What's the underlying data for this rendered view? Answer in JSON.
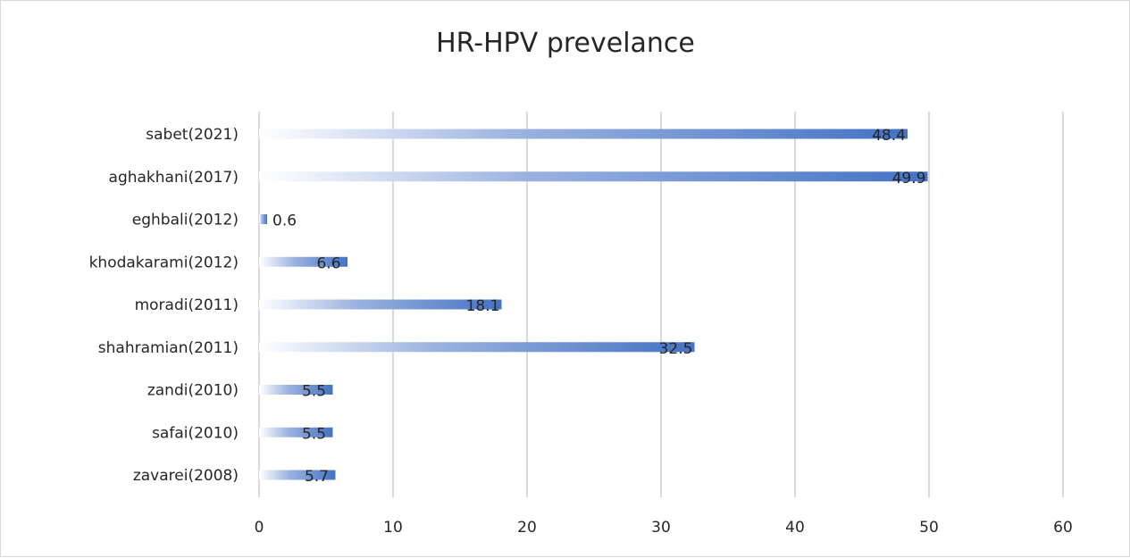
{
  "chart_data": {
    "type": "bar",
    "orientation": "horizontal",
    "title": "HR-HPV prevelance",
    "xlabel": "",
    "ylabel": "",
    "categories": [
      "sabet(2021)",
      "aghakhani(2017)",
      "eghbali(2012)",
      "khodakarami(2012)",
      "moradi(2011)",
      "shahramian(2011)",
      "zandi(2010)",
      "safai(2010)",
      "zavarei(2008)"
    ],
    "values": [
      48.4,
      49.9,
      0.6,
      6.6,
      18.1,
      32.5,
      5.5,
      5.5,
      5.7
    ],
    "data_labels": [
      "48.4",
      "49.9",
      "0.6",
      "6.6",
      "18.1",
      "32.5",
      "5.5",
      "5.5",
      "5.7"
    ],
    "xlim": [
      0,
      60
    ],
    "x_ticks": [
      "0",
      "10",
      "20",
      "30",
      "40",
      "50",
      "60"
    ],
    "grid": "vertical",
    "legend": "none",
    "colors": {
      "bar_start": "#ffffff",
      "bar_end": "#4472c4",
      "grid": "#d9d9d9",
      "text": "#262626"
    }
  }
}
